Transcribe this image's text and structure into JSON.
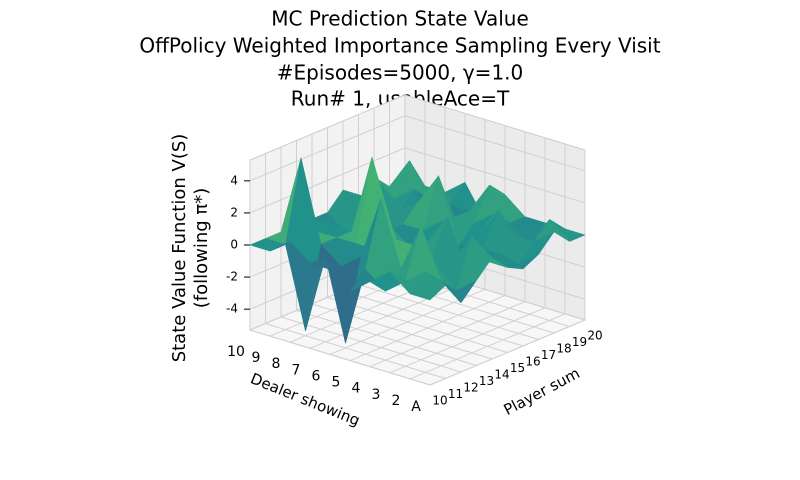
{
  "chart_data": {
    "type": "surface",
    "title": [
      "MC Prediction State Value",
      "OffPolicy Weighted Importance Sampling Every Visit",
      "#Episodes=5000, γ=1.0",
      "Run# 1, usableAce=T"
    ],
    "xlabel": "Player sum",
    "ylabel": "Dealer showing",
    "zlabel": [
      "State Value Function V(S)",
      "(following π*)"
    ],
    "xticks": [
      10,
      11,
      12,
      13,
      14,
      15,
      16,
      17,
      18,
      19,
      20
    ],
    "ycategories": [
      "A",
      "2",
      "3",
      "4",
      "5",
      "6",
      "7",
      "8",
      "9",
      "10"
    ],
    "zlim": [
      -5.3,
      5.3
    ],
    "zticks": [
      -4,
      -2,
      0,
      2,
      4
    ],
    "colormap": "viridis",
    "z": [
      [
        0,
        0.5,
        -1,
        0,
        1,
        0,
        -0.5,
        0,
        1,
        0,
        0
      ],
      [
        0,
        1,
        0,
        -1,
        2,
        0,
        0,
        -1,
        0,
        1,
        0
      ],
      [
        1,
        0,
        3,
        0,
        0,
        -1,
        0,
        2,
        0,
        -1,
        0
      ],
      [
        0,
        -1,
        0,
        1,
        0,
        2,
        -2,
        0,
        1,
        0,
        0
      ],
      [
        -1,
        0,
        4,
        1,
        0,
        0,
        1,
        -1,
        0,
        2,
        1
      ],
      [
        0,
        -5,
        0,
        0,
        1,
        -1,
        0,
        3,
        0,
        0,
        -1
      ],
      [
        0,
        0,
        -1,
        0,
        5,
        0,
        0,
        1,
        -2,
        0,
        1
      ],
      [
        1,
        -5,
        0,
        0,
        0,
        1,
        0,
        0,
        1,
        0,
        0
      ],
      [
        0,
        0,
        5,
        0,
        0,
        -1,
        1,
        0,
        0,
        2,
        0
      ],
      [
        0,
        0,
        0,
        0,
        0,
        0,
        1,
        0,
        1,
        0,
        0
      ]
    ]
  }
}
